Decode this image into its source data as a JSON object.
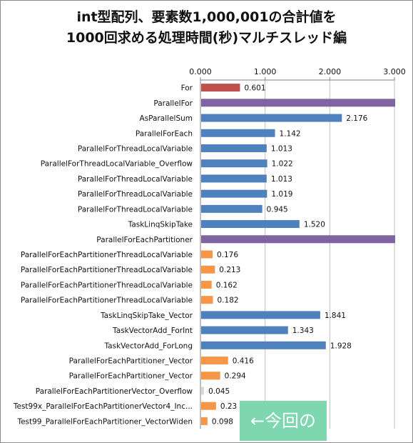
{
  "title": {
    "line1": "int型配列、要素数1,000,001の合計値を",
    "line2": "1000回求める処理時間(秒)マルチスレッド編"
  },
  "annotation": "←今回の",
  "colors": {
    "red": "#c0504d",
    "purple": "#8064a2",
    "blue": "#4f81bd",
    "orange": "#f79646",
    "gray": "#d9d9d9",
    "callout": "#7fd7b0"
  },
  "chart_data": {
    "type": "bar",
    "orientation": "horizontal",
    "title": "int型配列、要素数1,000,001の合計値を 1000回求める処理時間(秒)マルチスレッド編",
    "xlim": [
      0,
      3
    ],
    "x_ticks": [
      "0.000",
      "1.000",
      "2.000",
      "3.000"
    ],
    "axis_position": "top",
    "categories": [
      "For",
      "ParallelFor",
      "AsParallelSum",
      "ParallelForEach",
      "ParallelForThreadLocalVariable",
      "ParallelForThreadLocalVariable_Overflow",
      "ParallelForThreadLocalVariable",
      "ParallelForThreadLocalVariable",
      "ParallelForThreadLocalVariable",
      "TaskLinqSkipTake",
      "ParallelForEachPartitioner",
      "ParallelForEachPartitionerThreadLocalVariable",
      "ParallelForEachPartitionerThreadLocalVariable",
      "ParallelForEachPartitionerThreadLocalVariable",
      "ParallelForEachPartitionerThreadLocalVariable",
      "TaskLinqSkipTake_Vector",
      "TaskVectorAdd_ForInt",
      "TaskVectorAdd_ForLong",
      "ParallelForEachPartitioner_Vector",
      "ParallelForEachPartitioner_Vector",
      "ParallelForEachPartitionerVector_Overflow",
      "Test99x_ParallelForEachPartitionerVector4_Inc...",
      "Test99_ParallelForEachPartitioner_VectorWiden"
    ],
    "values": [
      0.601,
      3.0,
      2.176,
      1.142,
      1.013,
      1.022,
      1.013,
      1.019,
      0.945,
      1.52,
      3.0,
      0.176,
      0.213,
      0.162,
      0.182,
      1.841,
      1.343,
      1.928,
      0.416,
      0.294,
      0.045,
      0.23,
      0.098
    ],
    "value_labels": [
      "0.601",
      "",
      "2.176",
      "1.142",
      "1.013",
      "1.022",
      "1.013",
      "1.019",
      "0.945",
      "1.520",
      "",
      "0.176",
      "0.213",
      "0.162",
      "0.182",
      "1.841",
      "1.343",
      "1.928",
      "0.416",
      "0.294",
      "0.045",
      "0.23",
      "0.098"
    ],
    "bar_colors": [
      "red",
      "purple",
      "blue",
      "blue",
      "blue",
      "blue",
      "blue",
      "blue",
      "blue",
      "blue",
      "purple",
      "orange",
      "orange",
      "orange",
      "orange",
      "blue",
      "blue",
      "blue",
      "orange",
      "orange",
      "gray",
      "orange",
      "orange"
    ],
    "grid": true,
    "legend": "none"
  }
}
